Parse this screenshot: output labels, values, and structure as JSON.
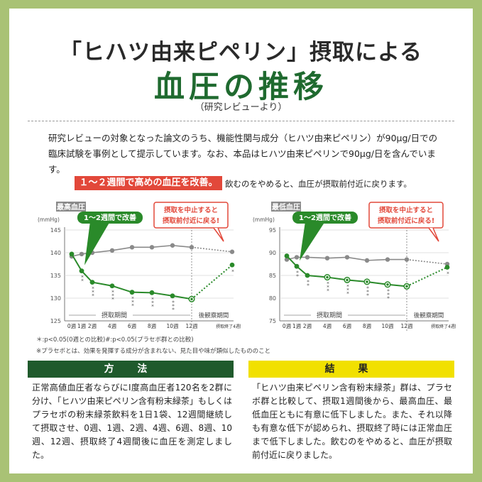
{
  "title_line1": "「ヒハツ由来ピペリン」摂取による",
  "title_line2": "血圧の推移",
  "subtitle": "（研究レビューより）",
  "intro_line1": "研究レビューの対象となった論文のうち、機能性関与成分（ヒハツ由来ピペリン）が90μg/日での",
  "intro_line2": "臨床試験を事例として提示しています。なお、本品はヒハツ由来ピペリンで90μg/日を含んでいます。",
  "banner_text": "１～２週間で高めの血圧を改善。",
  "banner_note": "飲むのをやめると、血圧が摂取前付近に戻ります。",
  "colors": {
    "test": "#2a8a2a",
    "placebo": "#8a8a8a",
    "red": "#e2483a",
    "green_dark": "#1f6a2f",
    "yellow": "#f1e000"
  },
  "chart_data": [
    {
      "type": "line",
      "title": "最高血圧",
      "unit": "(mmHg)",
      "callout_green": "1～2週間で改善",
      "callout_red_1": "摂取を中止すると",
      "callout_red_2": "摂取前付近に戻る!",
      "x_labels": [
        "0週",
        "1週",
        "2週",
        "4週",
        "6週",
        "8週",
        "10週",
        "12週",
        "摂取終了4週間後"
      ],
      "x_weeks": [
        0,
        1,
        2,
        4,
        6,
        8,
        10,
        12,
        16
      ],
      "ylim": [
        125,
        145
      ],
      "yticks": [
        125,
        130,
        135,
        140,
        145
      ],
      "series": [
        {
          "name": "ヒハツ由来ピペリン含有粉末緑茶",
          "values": [
            139.7,
            136.0,
            133.5,
            132.7,
            131.3,
            131.2,
            130.5,
            129.8,
            137.3
          ]
        },
        {
          "name": "プラセボ",
          "values": [
            139.2,
            139.7,
            140.0,
            140.5,
            141.2,
            141.2,
            141.6,
            141.2,
            140.2
          ]
        }
      ],
      "sig_marks": [
        "",
        "＊\n＊",
        "＊\n＊\n＊",
        "＊\n＊\n＊",
        "＊\n＊\n＊",
        "＊\n＊\n＊",
        "＊\n＊\n＊",
        "",
        "＊"
      ],
      "period_intake": "摂取期間",
      "period_followup": "後観察期間"
    },
    {
      "type": "line",
      "title": "最低血圧",
      "unit": "(mmHg)",
      "callout_green": "1～2週間で改善",
      "callout_red_1": "摂取を中止すると",
      "callout_red_2": "摂取前付近に戻る!",
      "x_labels": [
        "0週",
        "1週",
        "2週",
        "4週",
        "6週",
        "8週",
        "10週",
        "12週",
        "摂取終了4週間後"
      ],
      "x_weeks": [
        0,
        1,
        2,
        4,
        6,
        8,
        10,
        12,
        16
      ],
      "ylim": [
        75,
        95
      ],
      "yticks": [
        75,
        80,
        85,
        90,
        95
      ],
      "series": [
        {
          "name": "ヒハツ由来ピペリン含有粉末緑茶",
          "values": [
            89.3,
            87.0,
            85.0,
            84.6,
            84.0,
            83.6,
            83.0,
            82.6,
            86.8
          ]
        },
        {
          "name": "プラセボ",
          "values": [
            88.5,
            89.0,
            89.0,
            88.8,
            89.0,
            88.3,
            88.5,
            88.5,
            87.5
          ]
        }
      ],
      "sig_marks": [
        "",
        "＊\n＊",
        "＊\n＊",
        "＊\n＊\n＊",
        "＊\n＊\n＊",
        "＊\n＊\n＊",
        "＊\n＊\n＊",
        "",
        "＊"
      ],
      "period_intake": "摂取期間",
      "period_followup": "後観察期間"
    }
  ],
  "note_1": "＊:p<0.05(0週との比較)#:p<0.05(プラセボ群との比較)",
  "note_2": "※プラセボとは、効果を発揮する成分が含まれない、見た目や味が類似したもののこと",
  "method_header": "方 法",
  "method_text": "正常高値血圧者ならびにⅠ度高血圧者120名を2群に分け、「ヒハツ由来ピペリン含有粉末緑茶」もしくはプラセボの粉末緑茶飲料を1日1袋、12週間継続して摂取させ、0週、1週、2週、4週、6週、8週、10週、12週、摂取終了4週間後に血圧を測定しました。",
  "result_header": "結 果",
  "result_text": "「ヒハツ由来ピペリン含有粉末緑茶」群は、プラセボ群と比較して、摂取1週間後から、最高血圧、最低血圧ともに有意に低下しました。また、それ以降も有意な低下が認められ、摂取終了時には正常血圧まで低下しました。飲むのをやめると、血圧が摂取前付近に戻りました。"
}
